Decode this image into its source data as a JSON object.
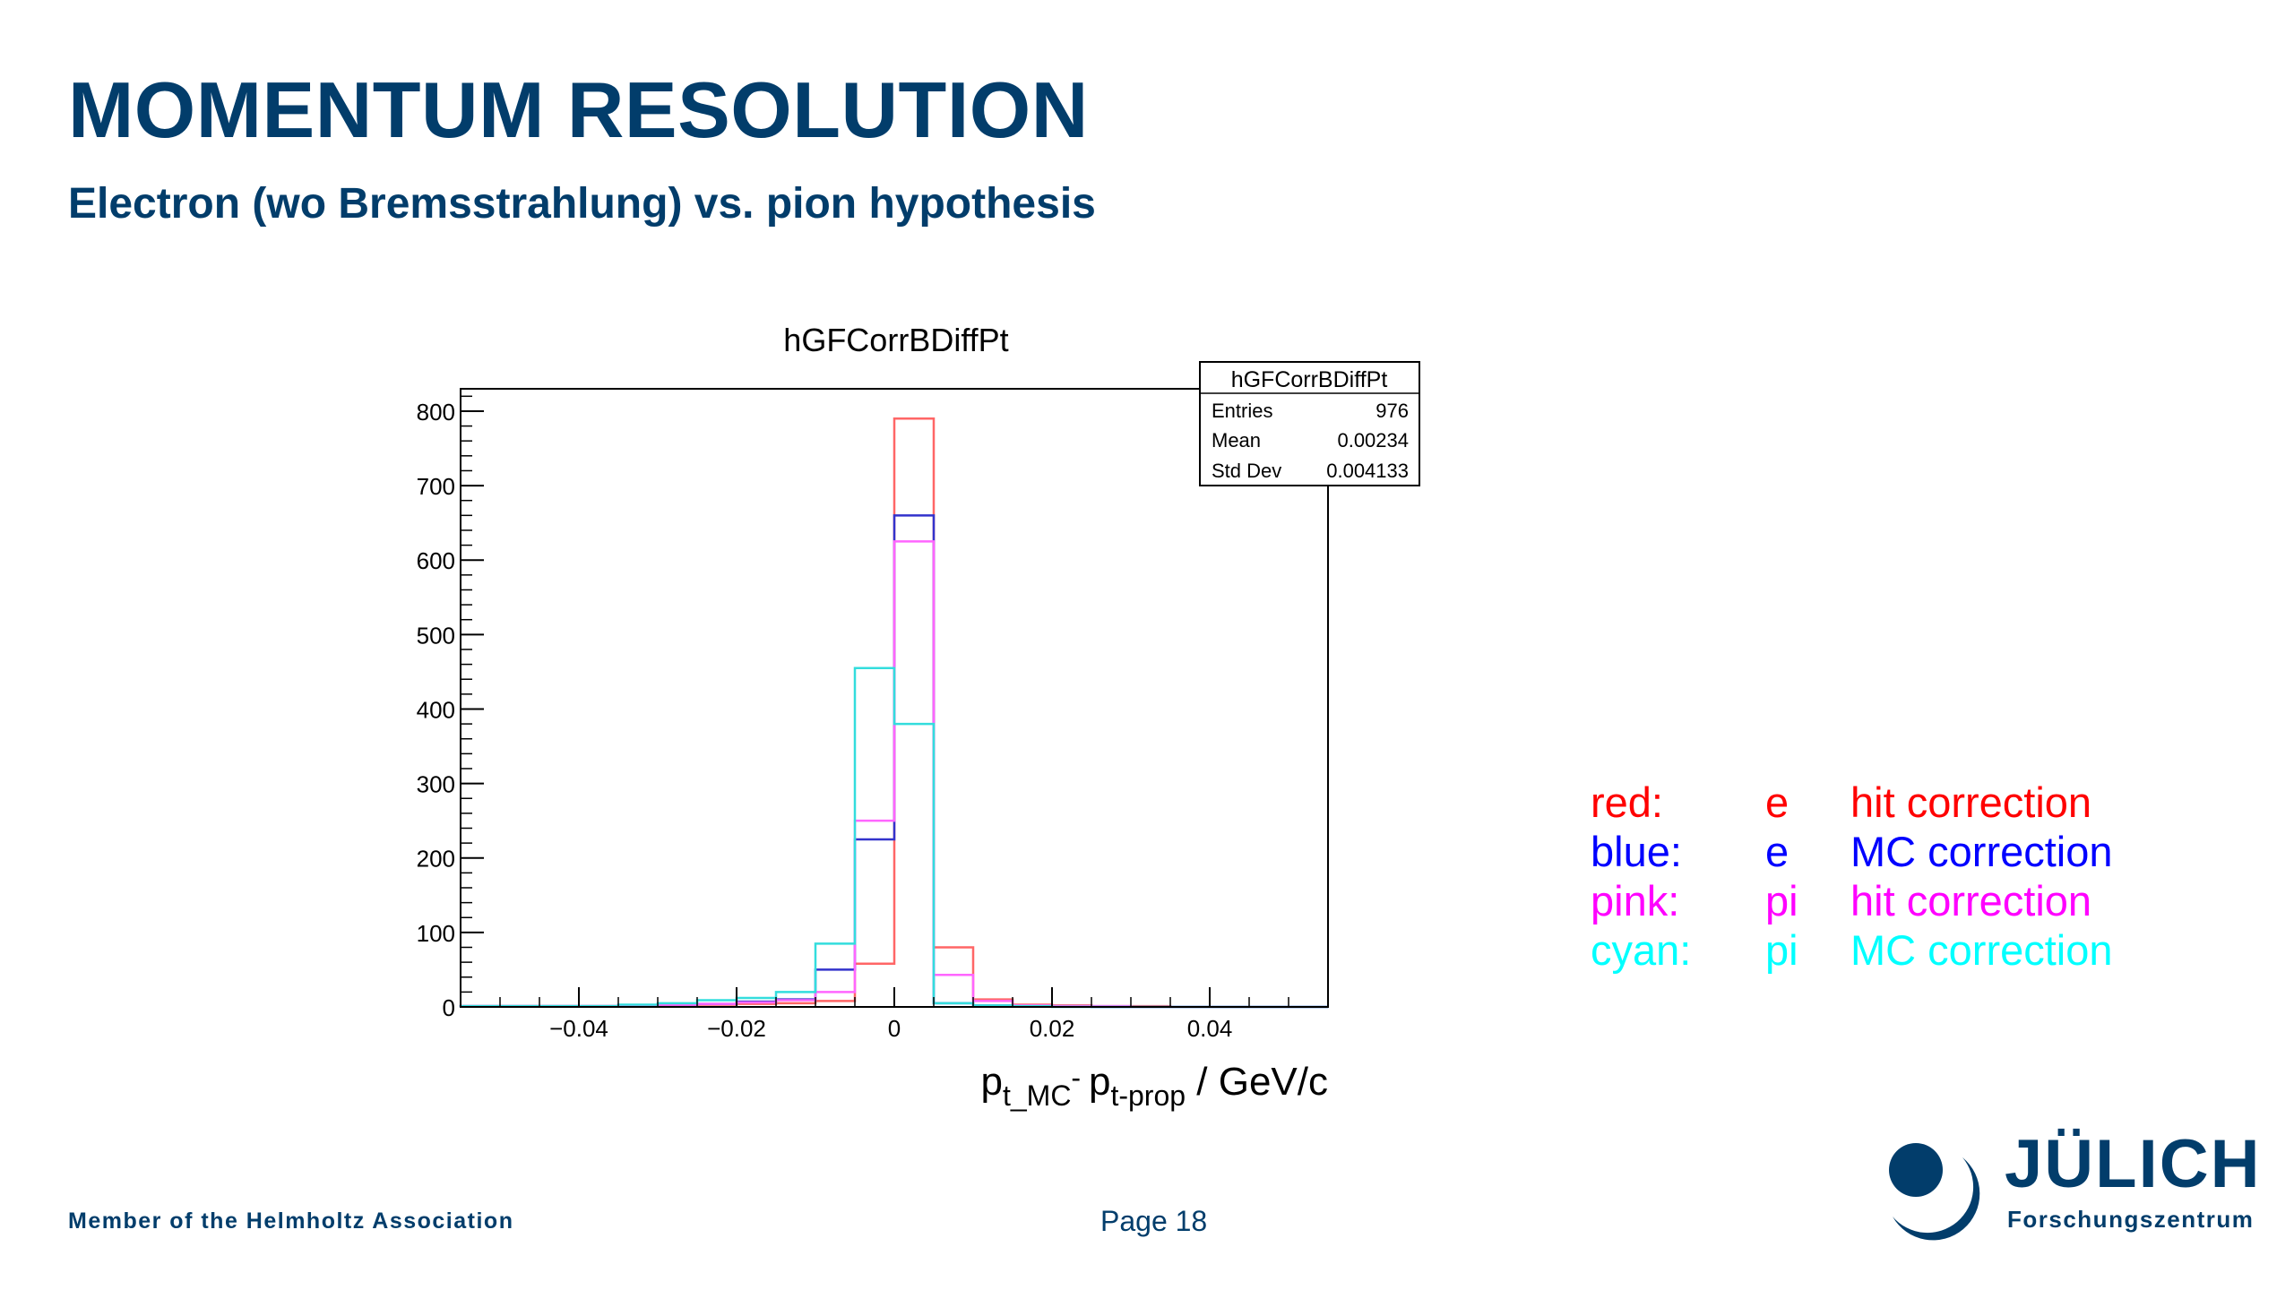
{
  "slide": {
    "title": "MOMENTUM RESOLUTION",
    "subtitle": "Electron (wo Bremsstrahlung) vs. pion hypothesis",
    "footer_left": "Member of the Helmholtz Association",
    "page": "Page 18"
  },
  "logo": {
    "name": "JÜLICH",
    "sub": "Forschungszentrum"
  },
  "legend": [
    {
      "color_name": "red:",
      "particle": "e",
      "method": "hit correction",
      "color": "#ff0000"
    },
    {
      "color_name": "blue:",
      "particle": "e",
      "method": "MC correction",
      "color": "#0000ff"
    },
    {
      "color_name": "pink:",
      "particle": "pi",
      "method": "hit correction",
      "color": "#ff00ff"
    },
    {
      "color_name": "cyan:",
      "particle": "pi",
      "method": "MC correction",
      "color": "#00ffff"
    }
  ],
  "chart_data": {
    "type": "histogram",
    "title": "hGFCorrBDiffPt",
    "xlabel": {
      "p1": "p",
      "p1_sub": "t_MC",
      "dash": "- ",
      "p2": "p",
      "p2_sub": "t-prop",
      "unit": " / GeV/c"
    },
    "xlim": [
      -0.055,
      0.055
    ],
    "ylim": [
      0,
      830
    ],
    "xticks": [
      -0.04,
      -0.02,
      0,
      0.02,
      0.04
    ],
    "xtick_labels": [
      "−0.04",
      "−0.02",
      "0",
      "0.02",
      "0.04"
    ],
    "yticks": [
      0,
      100,
      200,
      300,
      400,
      500,
      600,
      700,
      800
    ],
    "bin_edges": [
      -0.055,
      -0.05,
      -0.045,
      -0.04,
      -0.035,
      -0.03,
      -0.025,
      -0.02,
      -0.015,
      -0.01,
      -0.005,
      0.0,
      0.005,
      0.01,
      0.015,
      0.02,
      0.025,
      0.03,
      0.035,
      0.04,
      0.045,
      0.05,
      0.055
    ],
    "series": [
      {
        "color": "#ff6666",
        "values": [
          1,
          1,
          1,
          1,
          2,
          2,
          3,
          4,
          5,
          8,
          58,
          790,
          80,
          10,
          3,
          2,
          1,
          1,
          0,
          0,
          0,
          0
        ]
      },
      {
        "color": "#3333cc",
        "values": [
          1,
          1,
          1,
          1,
          2,
          3,
          4,
          7,
          10,
          50,
          225,
          660,
          5,
          2,
          1,
          1,
          0,
          0,
          0,
          0,
          0,
          0
        ]
      },
      {
        "color": "#ff66ff",
        "values": [
          1,
          1,
          1,
          1,
          2,
          3,
          4,
          6,
          9,
          20,
          250,
          625,
          43,
          8,
          2,
          1,
          1,
          0,
          0,
          0,
          0,
          0
        ]
      },
      {
        "color": "#33dddd",
        "values": [
          1,
          1,
          1,
          1,
          3,
          5,
          9,
          12,
          20,
          85,
          455,
          380,
          5,
          2,
          1,
          0,
          0,
          0,
          0,
          0,
          0,
          0
        ]
      }
    ],
    "stats": {
      "name": "hGFCorrBDiffPt",
      "rows": [
        {
          "label": "Entries",
          "value": "976"
        },
        {
          "label": "Mean",
          "value": "0.00234"
        },
        {
          "label": "Std Dev",
          "value": "0.004133"
        }
      ]
    }
  }
}
